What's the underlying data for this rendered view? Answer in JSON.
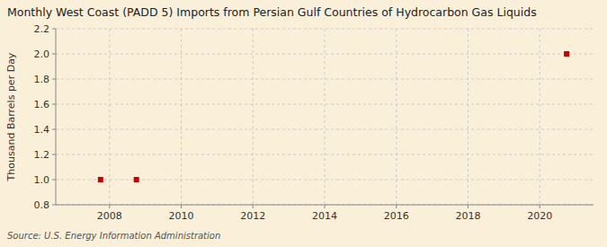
{
  "chart_data": {
    "type": "scatter",
    "title": "Monthly West Coast (PADD 5) Imports from Persian Gulf Countries of Hydrocarbon Gas Liquids",
    "ylabel": "Thousand Barrels per Day",
    "source": "Source: U.S. Energy Information Administration",
    "x": [
      2007.75,
      2008.75,
      2020.75
    ],
    "values": [
      1.0,
      1.0,
      2.0
    ],
    "color": "#cc0000",
    "marker": "square",
    "xlim": [
      2006.5,
      2021.5
    ],
    "ylim": [
      0.8,
      2.2
    ],
    "xticks": [
      2008,
      2010,
      2012,
      2014,
      2016,
      2018,
      2020
    ],
    "yticks": [
      0.8,
      {
        "value": 1.0,
        "label": "1.0"
      },
      1.2,
      1.4,
      1.6,
      1.8,
      {
        "value": 2.0,
        "label": "2.0"
      },
      2.2
    ],
    "grid": true
  }
}
